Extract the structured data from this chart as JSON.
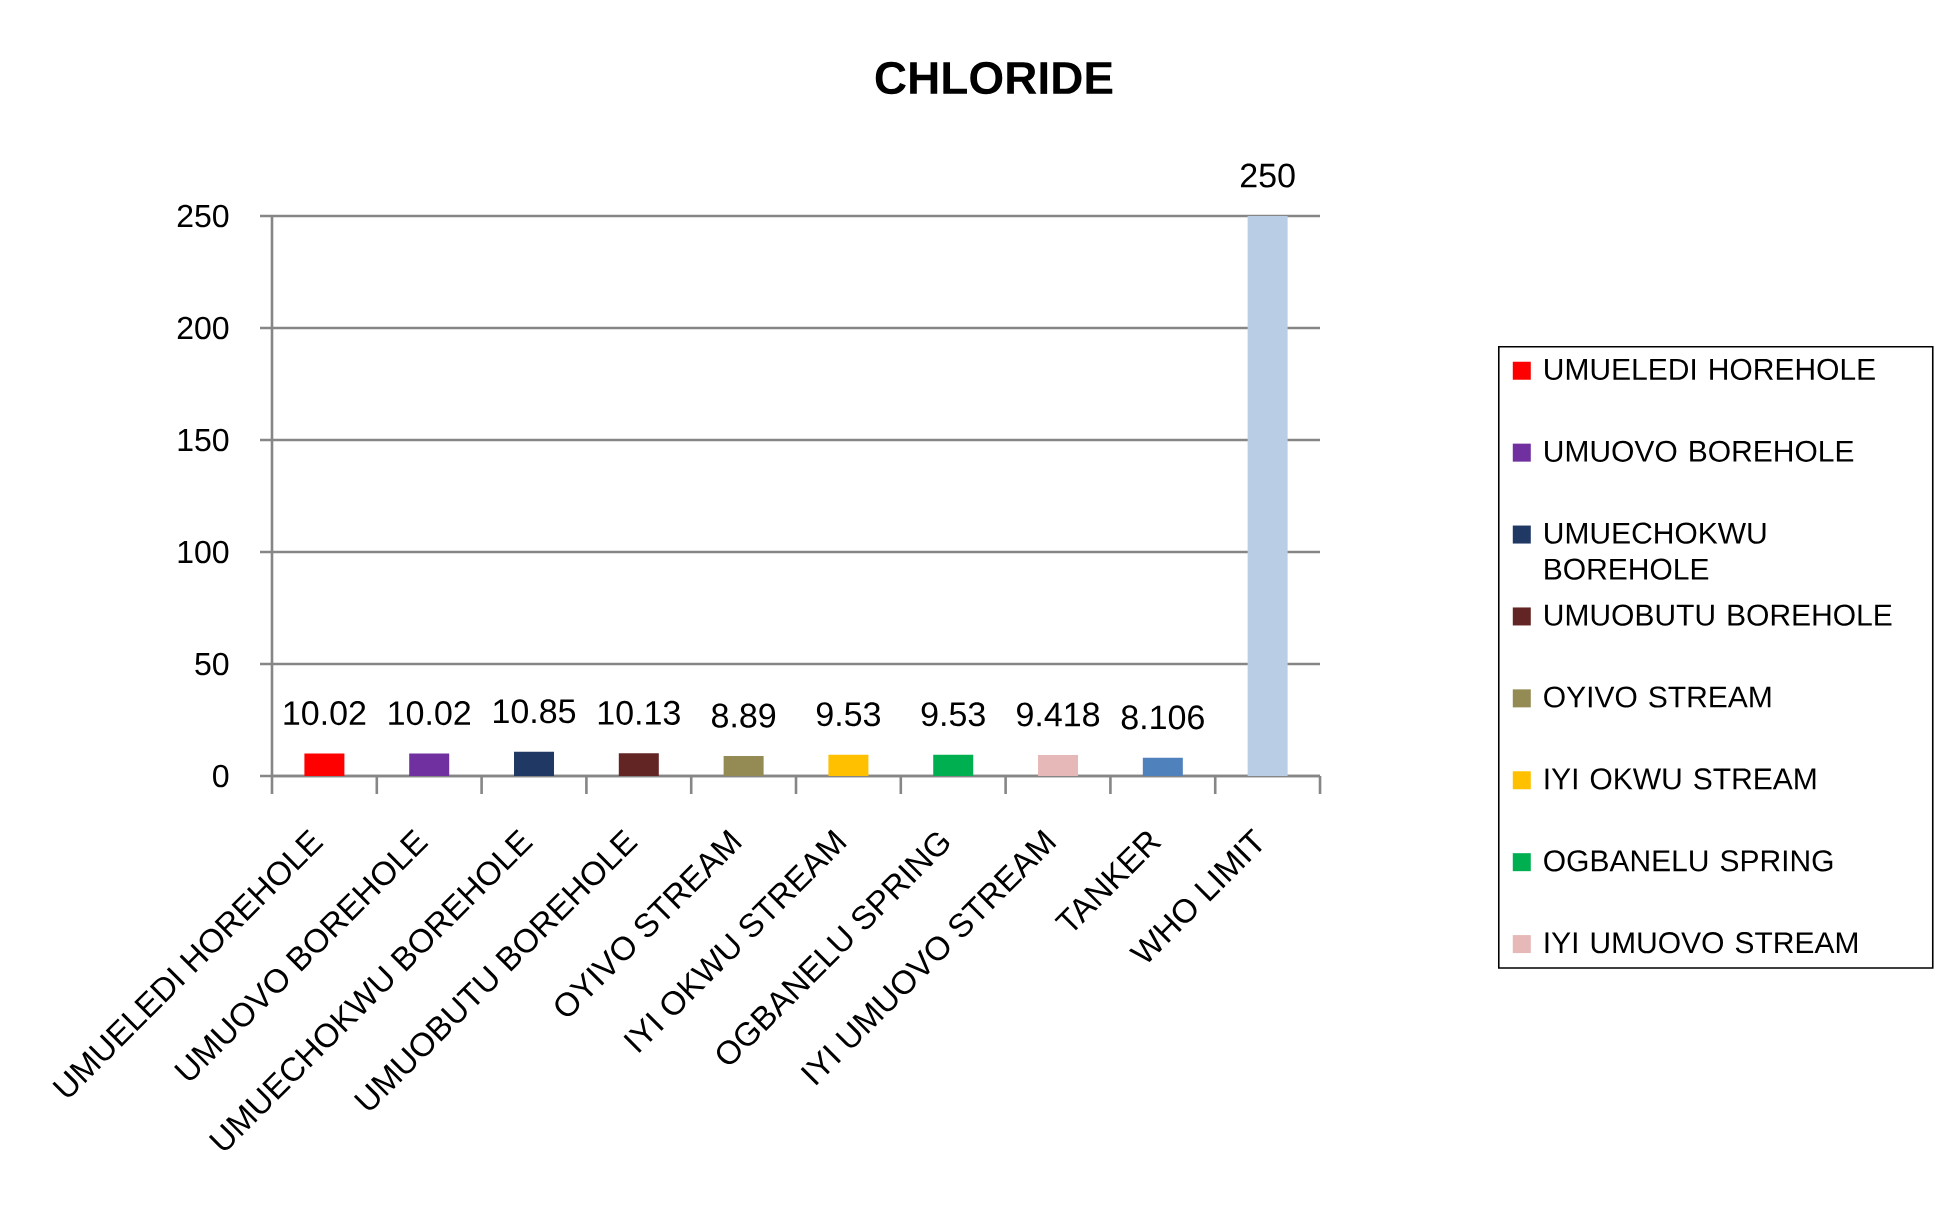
{
  "chart_data": {
    "type": "bar",
    "title": "CHLORIDE",
    "categories": [
      "UMUELEDI HOREHOLE",
      "UMUOVO BOREHOLE",
      "UMUECHOKWU BOREHOLE",
      "UMUOBUTU BOREHOLE",
      "OYIVO STREAM",
      "IYI OKWU STREAM",
      "OGBANELU SPRING",
      "IYI UMUOVO STREAM",
      "TANKER",
      "WHO LIMIT"
    ],
    "series": [
      {
        "name": "UMUELEDI HOREHOLE",
        "color": "#ff0000",
        "values": [
          10.02,
          null,
          null,
          null,
          null,
          null,
          null,
          null,
          null,
          null
        ]
      },
      {
        "name": "UMUOVO BOREHOLE",
        "color": "#7030a0",
        "values": [
          null,
          10.02,
          null,
          null,
          null,
          null,
          null,
          null,
          null,
          null
        ]
      },
      {
        "name": "UMUECHOKWU BOREHOLE",
        "color": "#1f3864",
        "values": [
          null,
          null,
          10.85,
          null,
          null,
          null,
          null,
          null,
          null,
          null
        ]
      },
      {
        "name": "UMUOBUTU BOREHOLE",
        "color": "#632523",
        "values": [
          null,
          null,
          null,
          10.13,
          null,
          null,
          null,
          null,
          null,
          null
        ]
      },
      {
        "name": "OYIVO STREAM",
        "color": "#948a54",
        "values": [
          null,
          null,
          null,
          null,
          8.89,
          null,
          null,
          null,
          null,
          null
        ]
      },
      {
        "name": "IYI OKWU STREAM",
        "color": "#ffc000",
        "values": [
          null,
          null,
          null,
          null,
          null,
          9.53,
          null,
          null,
          null,
          null
        ]
      },
      {
        "name": "OGBANELU SPRING",
        "color": "#00b050",
        "values": [
          null,
          null,
          null,
          null,
          null,
          null,
          9.53,
          null,
          null,
          null
        ]
      },
      {
        "name": "IYI UMUOVO STREAM",
        "color": "#e6b9b8",
        "values": [
          null,
          null,
          null,
          null,
          null,
          null,
          null,
          9.418,
          null,
          null
        ]
      },
      {
        "color": "#4f81bd",
        "values": [
          null,
          null,
          null,
          null,
          null,
          null,
          null,
          null,
          8.106,
          null
        ]
      },
      {
        "color": "#b9cde5",
        "values": [
          null,
          null,
          null,
          null,
          null,
          null,
          null,
          null,
          null,
          250
        ]
      }
    ],
    "ylim": [
      0,
      250
    ],
    "yticks": [
      0,
      50,
      100,
      150,
      200,
      250
    ],
    "grid": "y",
    "legend": "right",
    "data_labels": true
  }
}
